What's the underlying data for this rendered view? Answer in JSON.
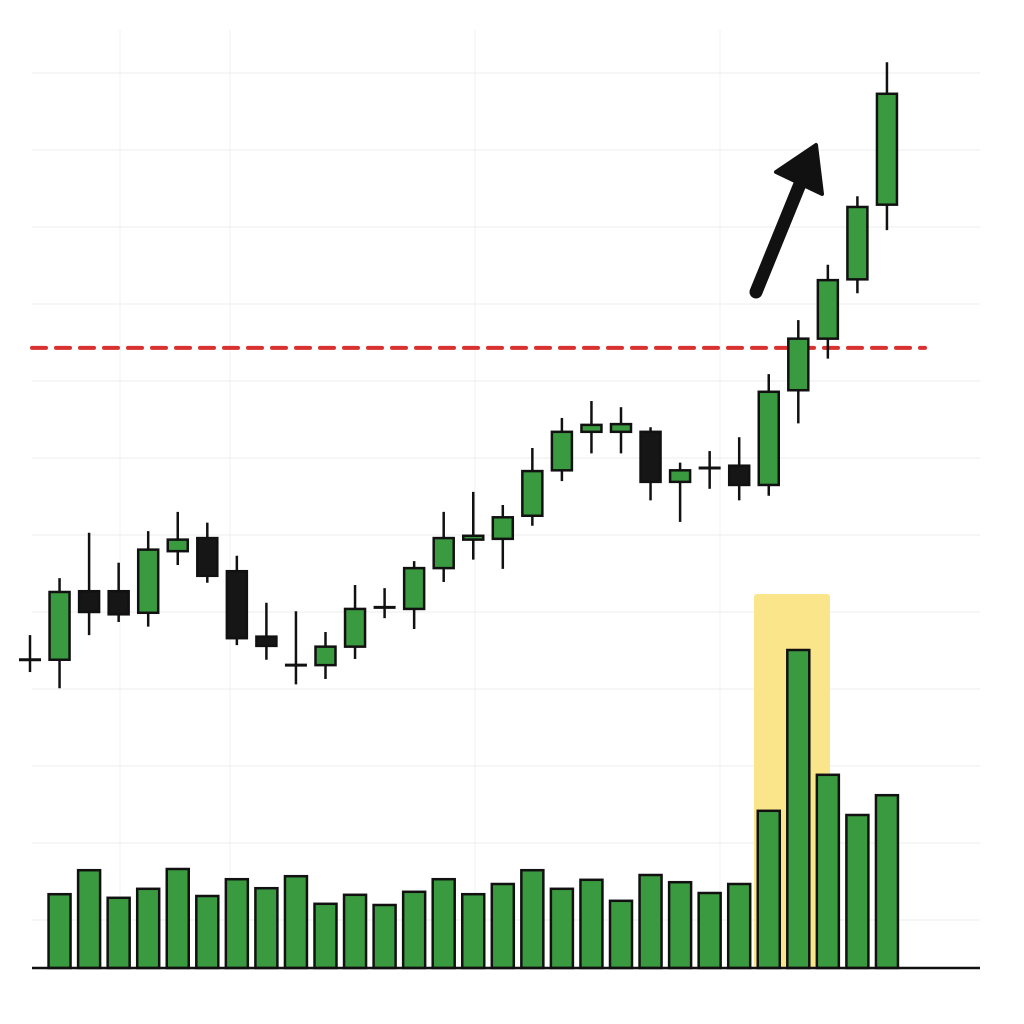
{
  "chart_data": {
    "type": "candlestick",
    "open": [
      43.8,
      43.8,
      52.7,
      52.7,
      49.9,
      57.9,
      59.6,
      55.3,
      46.8,
      43.1,
      43.1,
      45.5,
      50.6,
      50.4,
      55.7,
      59.4,
      59.5,
      62.5,
      68.4,
      73.4,
      73.4,
      73.4,
      66.9,
      68.7,
      69.0,
      66.5,
      78.8,
      85.5,
      93.2,
      102.9
    ],
    "high": [
      47.0,
      54.4,
      60.3,
      56.4,
      60.5,
      63.0,
      61.6,
      57.3,
      51.2,
      50.1,
      47.4,
      53.5,
      53.1,
      56.6,
      63.0,
      65.6,
      63.9,
      71.3,
      75.2,
      77.4,
      76.6,
      74.0,
      69.4,
      70.9,
      72.7,
      80.9,
      87.9,
      95.1,
      104.0,
      121.4
    ],
    "low": [
      42.2,
      40.1,
      47.0,
      48.7,
      48.1,
      56.1,
      53.8,
      45.7,
      43.8,
      40.6,
      41.3,
      43.9,
      49.2,
      47.8,
      53.9,
      56.8,
      55.6,
      61.2,
      67.0,
      70.6,
      70.6,
      64.5,
      61.7,
      66.0,
      64.5,
      65.1,
      74.5,
      82.9,
      91.4,
      99.6
    ],
    "close": [
      43.8,
      52.6,
      50.0,
      49.7,
      58.1,
      59.4,
      54.7,
      46.6,
      45.6,
      43.1,
      45.5,
      50.4,
      50.6,
      55.7,
      59.6,
      59.9,
      62.3,
      68.3,
      73.4,
      74.3,
      74.4,
      66.9,
      68.4,
      68.7,
      66.5,
      78.6,
      85.5,
      93.1,
      102.6,
      117.3
    ],
    "volume": [
      null,
      12.3,
      16.3,
      11.7,
      13.2,
      16.5,
      12.0,
      14.8,
      13.3,
      15.3,
      10.7,
      12.2,
      10.5,
      12.7,
      14.8,
      12.3,
      14.0,
      16.3,
      13.2,
      14.7,
      11.2,
      15.5,
      14.3,
      12.5,
      14.0,
      26.2,
      53.0,
      32.2,
      25.5,
      28.8
    ],
    "up_color": "#3a9a3f",
    "down_color": "#161616",
    "volume_color": "#3a9a3f",
    "ylim": [
      0,
      125
    ],
    "yticks": [
      10,
      20,
      30,
      40,
      50,
      60,
      70,
      80,
      90,
      100,
      110,
      120
    ],
    "y2lim": [
      0,
      100
    ],
    "grid": true,
    "reference_line": {
      "value": 84.3,
      "color": "#d93030",
      "style": "dashed"
    }
  }
}
